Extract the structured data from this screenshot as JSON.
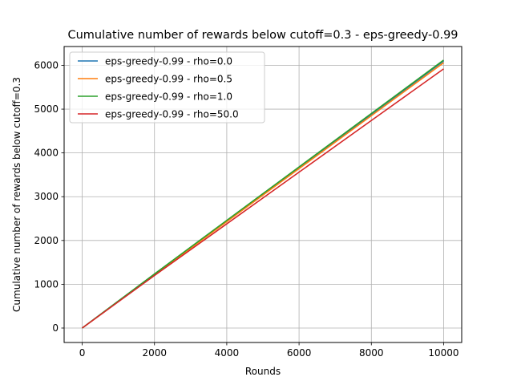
{
  "chart_data": {
    "type": "line",
    "title": "Cumulative number of rewards below cutoff=0.3 - eps-greedy-0.99",
    "xlabel": "Rounds",
    "ylabel": "Cumulative number of rewards below cutoff=0.3",
    "xlim": [
      -500,
      10500
    ],
    "ylim": [
      -330,
      6430
    ],
    "xticks": [
      0,
      2000,
      4000,
      6000,
      8000,
      10000
    ],
    "yticks": [
      0,
      1000,
      2000,
      3000,
      4000,
      5000,
      6000
    ],
    "grid": true,
    "legend_position": "upper-left",
    "series": [
      {
        "name": "eps-greedy-0.99 - rho=0.0",
        "color": "#1f77b4",
        "x": [
          0,
          2000,
          4000,
          6000,
          8000,
          10000
        ],
        "y": [
          0,
          1230,
          2450,
          3670,
          4880,
          6100
        ]
      },
      {
        "name": "eps-greedy-0.99 - rho=0.5",
        "color": "#ff7f0e",
        "x": [
          0,
          2000,
          4000,
          6000,
          8000,
          10000
        ],
        "y": [
          0,
          1220,
          2430,
          3640,
          4850,
          6060
        ]
      },
      {
        "name": "eps-greedy-0.99 - rho=1.0",
        "color": "#2ca02c",
        "x": [
          0,
          2000,
          4000,
          6000,
          8000,
          10000
        ],
        "y": [
          0,
          1235,
          2460,
          3680,
          4900,
          6120
        ]
      },
      {
        "name": "eps-greedy-0.99 - rho=50.0",
        "color": "#d62728",
        "x": [
          0,
          2000,
          4000,
          6000,
          8000,
          10000
        ],
        "y": [
          0,
          1200,
          2380,
          3560,
          4740,
          5920
        ]
      }
    ]
  }
}
